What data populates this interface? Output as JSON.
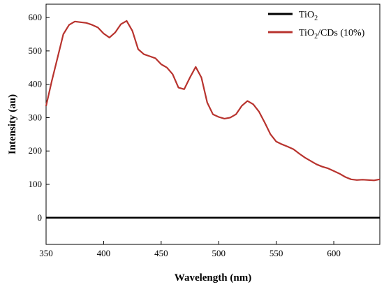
{
  "chart_data": {
    "type": "line",
    "xlabel": "Wavelength (nm)",
    "ylabel": "Intensity (au)",
    "xlim": [
      350,
      640
    ],
    "ylim": [
      -80,
      640
    ],
    "x_ticks": [
      350,
      400,
      450,
      500,
      550,
      600
    ],
    "y_ticks": [
      0,
      100,
      200,
      300,
      400,
      500,
      600
    ],
    "grid": false,
    "legend_position": "top-right",
    "series": [
      {
        "name": "TiO",
        "name_subscript": "2",
        "name_suffix": "",
        "color": "#000000",
        "x": [
          350,
          640
        ],
        "y": [
          0,
          0
        ]
      },
      {
        "name": "TiO",
        "name_subscript": "2",
        "name_suffix": "/CDs (10%)",
        "color": "#b8332e",
        "x": [
          350,
          355,
          360,
          365,
          370,
          375,
          380,
          385,
          390,
          395,
          400,
          405,
          410,
          415,
          420,
          425,
          430,
          435,
          440,
          445,
          450,
          455,
          460,
          465,
          470,
          475,
          480,
          485,
          490,
          495,
          500,
          505,
          510,
          515,
          520,
          525,
          530,
          535,
          540,
          545,
          550,
          555,
          560,
          565,
          570,
          575,
          580,
          585,
          590,
          595,
          600,
          605,
          610,
          615,
          620,
          625,
          630,
          635,
          640
        ],
        "y": [
          335,
          410,
          480,
          550,
          578,
          588,
          586,
          584,
          578,
          570,
          552,
          540,
          555,
          580,
          590,
          560,
          505,
          490,
          484,
          478,
          460,
          450,
          430,
          390,
          385,
          420,
          452,
          420,
          345,
          310,
          302,
          297,
          300,
          310,
          335,
          350,
          340,
          318,
          285,
          250,
          228,
          220,
          213,
          205,
          192,
          180,
          170,
          160,
          153,
          148,
          140,
          132,
          122,
          115,
          113,
          114,
          113,
          112,
          115
        ]
      }
    ]
  }
}
